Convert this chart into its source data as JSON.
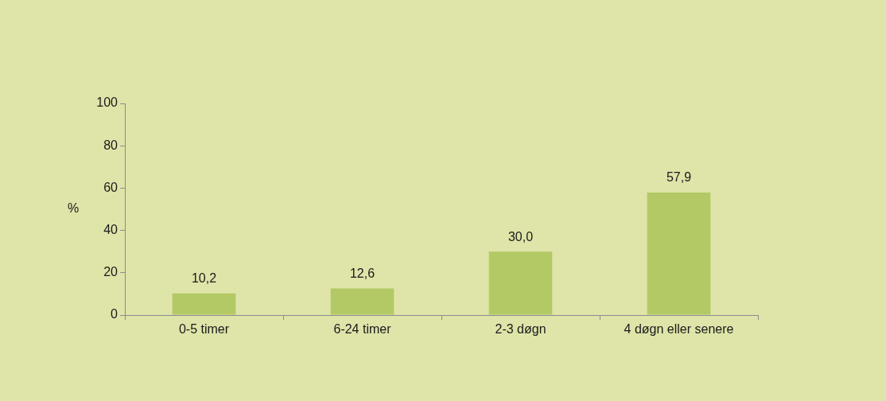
{
  "chart_data": {
    "type": "bar",
    "ylabel": "%",
    "categories": [
      "0-5 timer",
      "6-24 timer",
      "2-3 døgn",
      "4 døgn eller senere"
    ],
    "values": [
      10.2,
      12.6,
      30.0,
      57.9
    ],
    "color": "#b3c965",
    "value_labels": [
      "10,2",
      "12,6",
      "30,0",
      "57,9"
    ],
    "ylim": [
      0,
      100
    ],
    "yticks": [
      0,
      20,
      40,
      60,
      80,
      100
    ],
    "grid": false,
    "legend": false
  }
}
